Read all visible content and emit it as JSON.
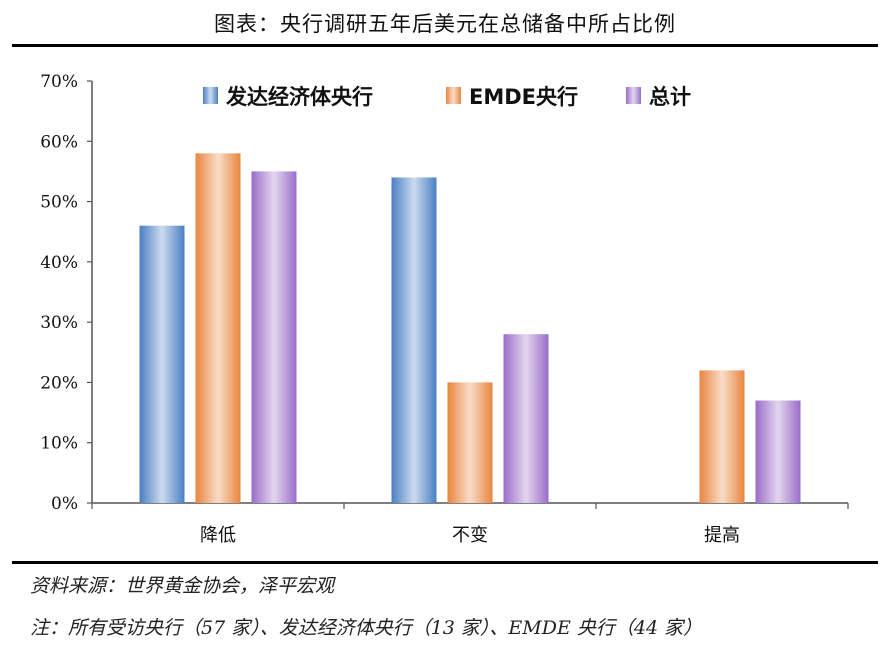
{
  "title": "图表：央行调研五年后美元在总储备中所占比例",
  "source": "资料来源：世界黄金协会，泽平宏观",
  "note": "注：所有受访央行（57 家）、发达经济体央行（13 家）、EMDE 央行（44 家）",
  "chart_data": {
    "type": "bar",
    "categories": [
      "降低",
      "不变",
      "提高"
    ],
    "series": [
      {
        "name": "发达经济体央行",
        "values": [
          46,
          54,
          0
        ],
        "color": "#4a7fc4"
      },
      {
        "name": "EMDE央行",
        "values": [
          58,
          20,
          22
        ],
        "color": "#e8853e"
      },
      {
        "name": "总计",
        "values": [
          55,
          28,
          17
        ],
        "color": "#9a6cc8"
      }
    ],
    "ylim": [
      0,
      70
    ],
    "yticks": [
      "0%",
      "10%",
      "20%",
      "30%",
      "40%",
      "50%",
      "60%",
      "70%"
    ],
    "legend_position": "top",
    "grid": false
  }
}
